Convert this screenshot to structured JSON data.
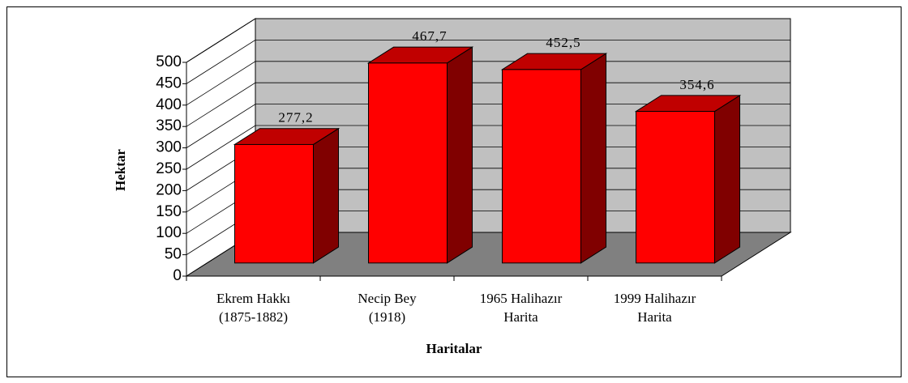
{
  "chart_data": {
    "type": "bar3d",
    "categories": [
      [
        "Ekrem Hakkı",
        "(1875-1882)"
      ],
      [
        "Necip Bey",
        "(1918)"
      ],
      [
        "1965 Halihazır",
        "Harita"
      ],
      [
        "1999 Halihazır",
        "Harita"
      ]
    ],
    "values": [
      277.2,
      467.7,
      452.5,
      354.6
    ],
    "value_labels": [
      "277,2",
      "467,7",
      "452,5",
      "354,6"
    ],
    "color": "#ff0000",
    "ylim": [
      0,
      500
    ],
    "yticks": [
      0,
      50,
      100,
      150,
      200,
      250,
      300,
      350,
      400,
      450,
      500
    ],
    "ylabel": "Hektar",
    "xlabel": "Haritalar",
    "grid": true
  }
}
